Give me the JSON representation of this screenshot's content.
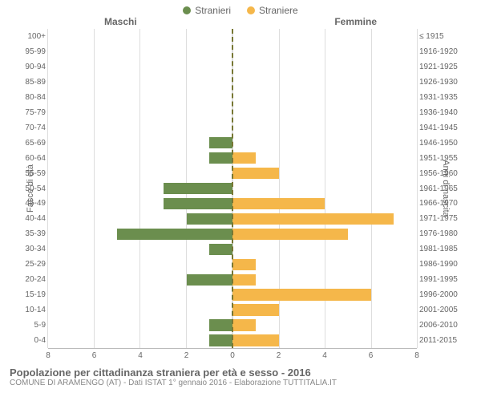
{
  "legend": {
    "male": {
      "label": "Stranieri",
      "color": "#6b8e4e"
    },
    "female": {
      "label": "Straniere",
      "color": "#f5b74a"
    }
  },
  "colHeaders": {
    "left": "Maschi",
    "right": "Femmine"
  },
  "axisTitles": {
    "left": "Fasce di età",
    "right": "Anni di nascita"
  },
  "xAxis": {
    "max": 8,
    "step": 2,
    "ticks": [
      8,
      6,
      4,
      2,
      0,
      2,
      4,
      6,
      8
    ]
  },
  "gridColor": "#dddddd",
  "centerLineColor": "#777733",
  "rows": [
    {
      "age": "100+",
      "birth": "≤ 1915",
      "m": 0,
      "f": 0
    },
    {
      "age": "95-99",
      "birth": "1916-1920",
      "m": 0,
      "f": 0
    },
    {
      "age": "90-94",
      "birth": "1921-1925",
      "m": 0,
      "f": 0
    },
    {
      "age": "85-89",
      "birth": "1926-1930",
      "m": 0,
      "f": 0
    },
    {
      "age": "80-84",
      "birth": "1931-1935",
      "m": 0,
      "f": 0
    },
    {
      "age": "75-79",
      "birth": "1936-1940",
      "m": 0,
      "f": 0
    },
    {
      "age": "70-74",
      "birth": "1941-1945",
      "m": 0,
      "f": 0
    },
    {
      "age": "65-69",
      "birth": "1946-1950",
      "m": 1,
      "f": 0
    },
    {
      "age": "60-64",
      "birth": "1951-1955",
      "m": 1,
      "f": 1
    },
    {
      "age": "55-59",
      "birth": "1956-1960",
      "m": 0,
      "f": 2
    },
    {
      "age": "50-54",
      "birth": "1961-1965",
      "m": 3,
      "f": 0
    },
    {
      "age": "45-49",
      "birth": "1966-1970",
      "m": 3,
      "f": 4
    },
    {
      "age": "40-44",
      "birth": "1971-1975",
      "m": 2,
      "f": 7
    },
    {
      "age": "35-39",
      "birth": "1976-1980",
      "m": 5,
      "f": 5
    },
    {
      "age": "30-34",
      "birth": "1981-1985",
      "m": 1,
      "f": 0
    },
    {
      "age": "25-29",
      "birth": "1986-1990",
      "m": 0,
      "f": 1
    },
    {
      "age": "20-24",
      "birth": "1991-1995",
      "m": 2,
      "f": 1
    },
    {
      "age": "15-19",
      "birth": "1996-2000",
      "m": 0,
      "f": 6
    },
    {
      "age": "10-14",
      "birth": "2001-2005",
      "m": 0,
      "f": 2
    },
    {
      "age": "5-9",
      "birth": "2006-2010",
      "m": 1,
      "f": 1
    },
    {
      "age": "0-4",
      "birth": "2011-2015",
      "m": 1,
      "f": 2
    }
  ],
  "footer": {
    "title": "Popolazione per cittadinanza straniera per età e sesso - 2016",
    "subtitle": "COMUNE DI ARAMENGO (AT) - Dati ISTAT 1° gennaio 2016 - Elaborazione TUTTITALIA.IT"
  },
  "layout": {
    "chartHeight": 398
  }
}
